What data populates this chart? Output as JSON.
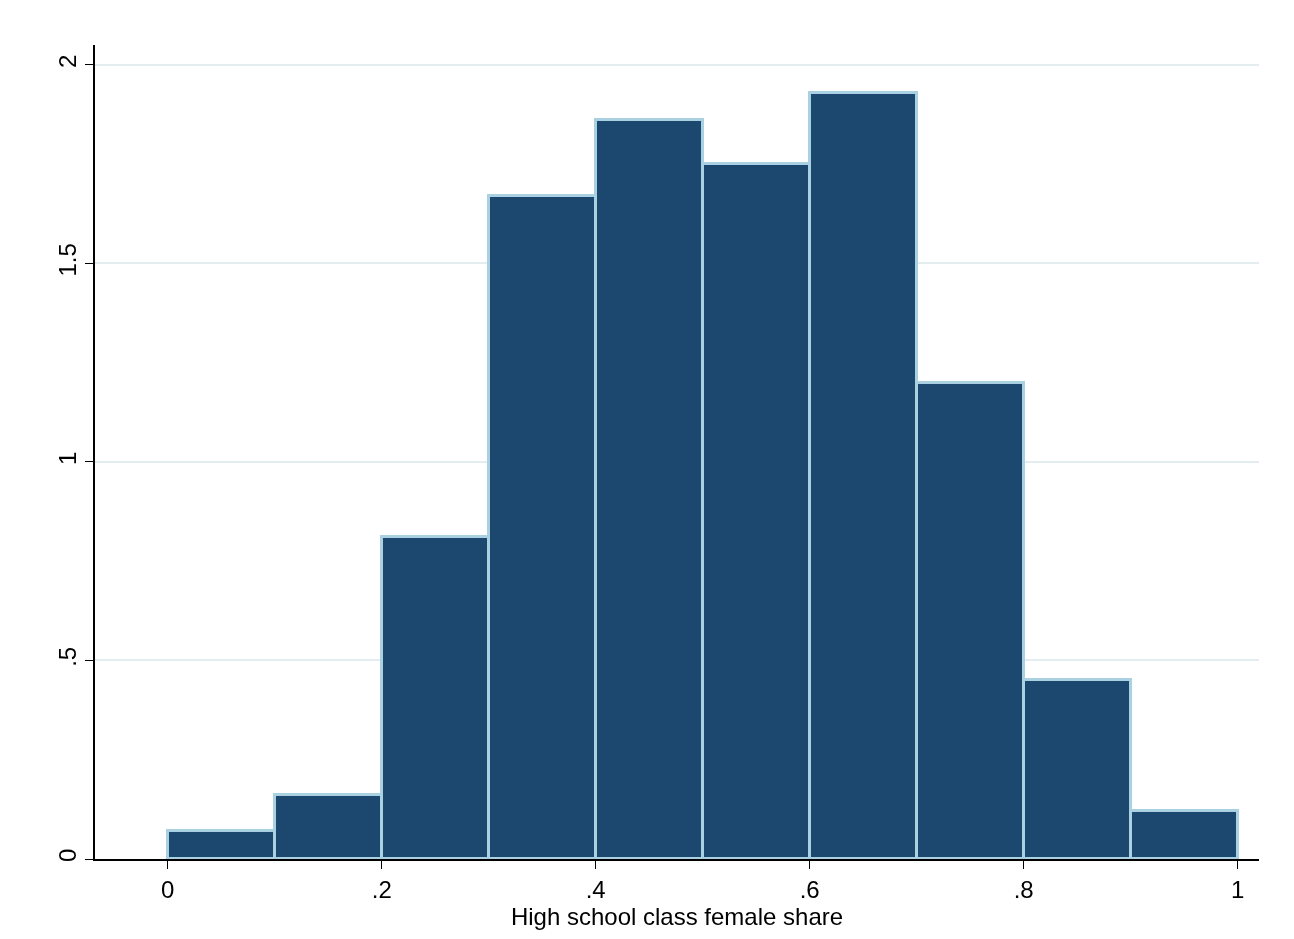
{
  "chart_data": {
    "type": "histogram",
    "xlabel": "High school class female share",
    "bins": [
      0,
      0.1,
      0.2,
      0.3,
      0.4,
      0.5,
      0.6,
      0.7,
      0.8,
      0.9,
      1.0
    ],
    "values": [
      0.07,
      0.16,
      0.81,
      1.67,
      1.86,
      1.75,
      1.93,
      1.2,
      0.45,
      0.12
    ],
    "color": "#1c4870",
    "xlim": [
      -0.068,
      1.02
    ],
    "xticks": [
      0,
      {
        "value": 0.2,
        "label": ".2"
      },
      {
        "value": 0.4,
        "label": ".4"
      },
      {
        "value": 0.6,
        "label": ".6"
      },
      {
        "value": 0.8,
        "label": ".8"
      },
      1
    ],
    "ylim": [
      0,
      2.05
    ],
    "yticks": [
      0,
      {
        "value": 0.5,
        "label": ".5"
      },
      1,
      {
        "value": 1.5,
        "label": "1.5"
      },
      2
    ],
    "grid": "y"
  }
}
